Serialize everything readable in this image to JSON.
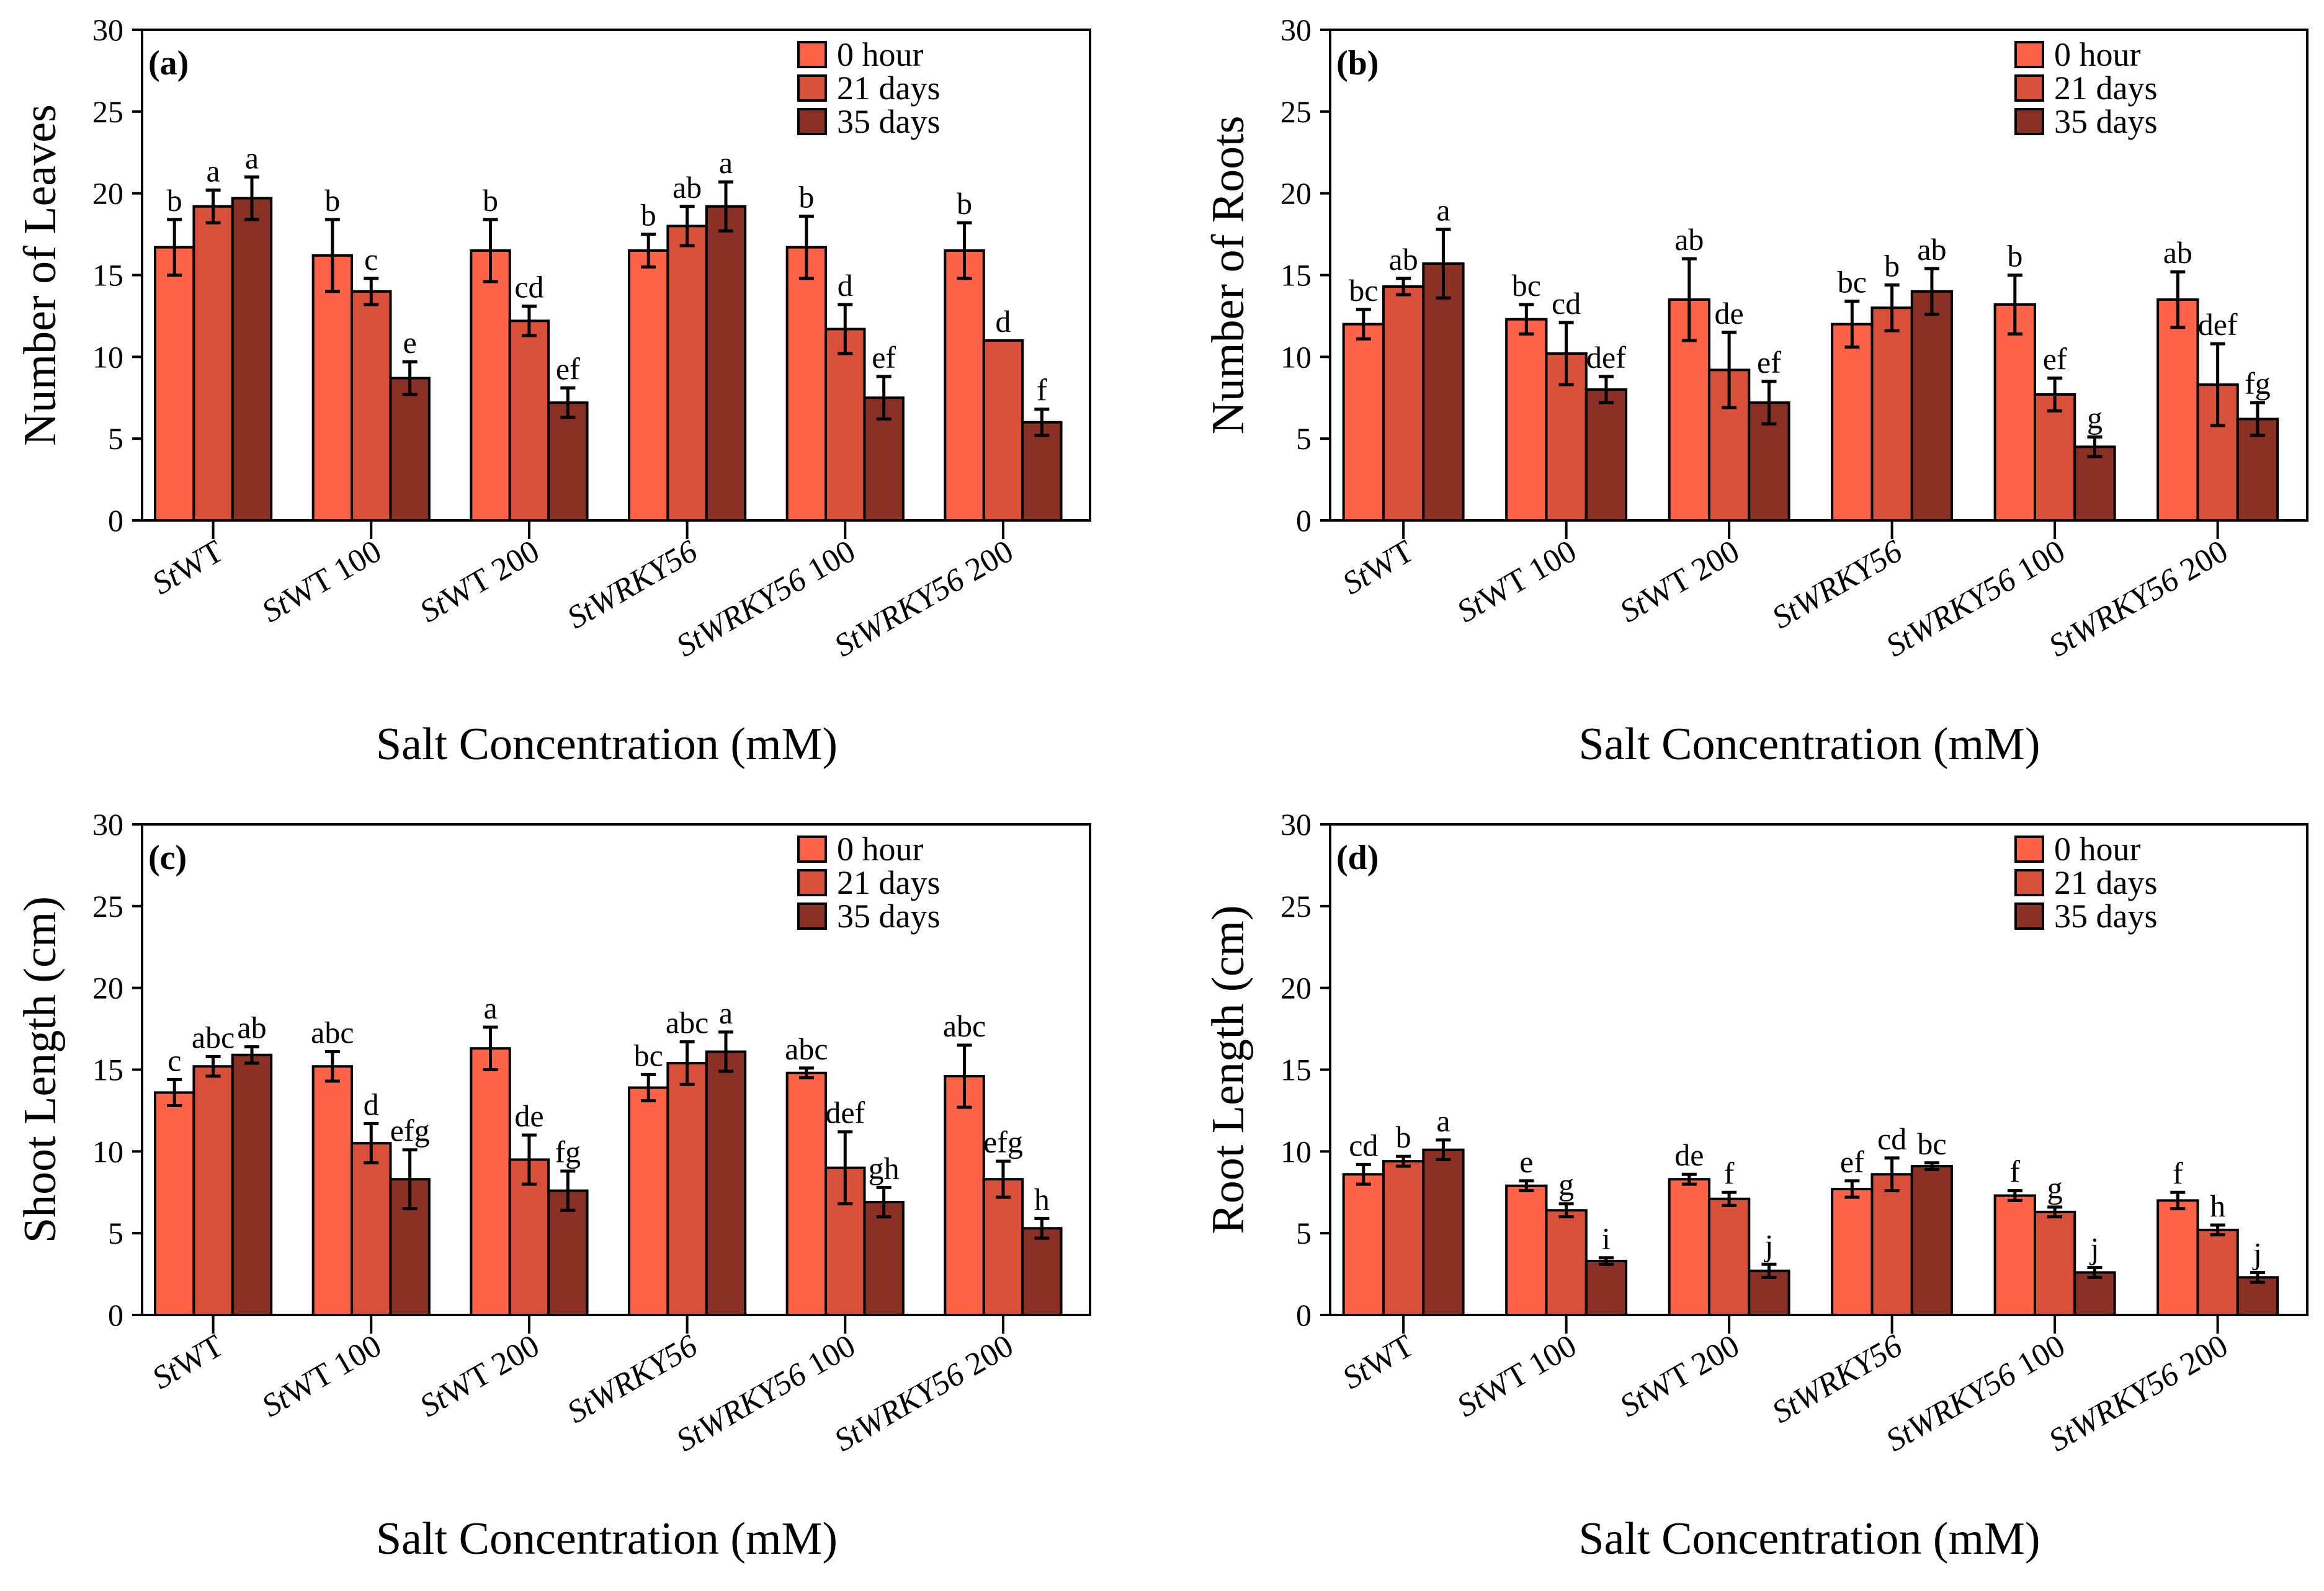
{
  "colors": {
    "0 hour": "#ff6347",
    "21 days": "#d9503a",
    "35 days": "#8b3024"
  },
  "chart_data": [
    {
      "type": "bar",
      "panel": "(a)",
      "ylabel": "Number of Leaves",
      "xlabel": "Salt Concentration (mM)",
      "ylim": [
        0,
        30
      ],
      "yticks": [
        0,
        5,
        10,
        15,
        20,
        25,
        30
      ],
      "legend": "top-right",
      "categories": [
        {
          "text": "StWT",
          "italic": "St"
        },
        {
          "text": "StWT 100",
          "italic": "St"
        },
        {
          "text": "StWT 200",
          "italic": "St"
        },
        {
          "text": "StWRKY56",
          "italic": "StWRKY56"
        },
        {
          "text": "StWRKY56 100",
          "italic": "StWRKY56"
        },
        {
          "text": "StWRKY56 200",
          "italic": "StWRKY56"
        }
      ],
      "series": [
        {
          "name": "0 hour",
          "values": [
            16.7,
            16.2,
            16.5,
            16.5,
            16.7,
            16.5
          ],
          "errors": [
            1.7,
            2.2,
            1.9,
            1.0,
            1.9,
            1.7
          ],
          "letters": [
            "b",
            "b",
            "b",
            "b",
            "b",
            "b"
          ]
        },
        {
          "name": "21 days",
          "values": [
            19.2,
            14.0,
            12.2,
            18.0,
            11.7,
            11.0
          ],
          "errors": [
            1.0,
            0.8,
            0.9,
            1.2,
            1.5,
            0
          ],
          "letters": [
            "a",
            "c",
            "cd",
            "ab",
            "d",
            "d"
          ]
        },
        {
          "name": "35 days",
          "values": [
            19.7,
            8.7,
            7.2,
            19.2,
            7.5,
            6.0
          ],
          "errors": [
            1.3,
            1.0,
            0.9,
            1.5,
            1.3,
            0.8
          ],
          "letters": [
            "a",
            "e",
            "ef",
            "a",
            "ef",
            "f"
          ]
        }
      ]
    },
    {
      "type": "bar",
      "panel": "(b)",
      "ylabel": "Number of Roots",
      "xlabel": "Salt Concentration (mM)",
      "ylim": [
        0,
        30
      ],
      "yticks": [
        0,
        5,
        10,
        15,
        20,
        25,
        30
      ],
      "legend": "top-right",
      "categories": [
        {
          "text": "StWT",
          "italic": "St"
        },
        {
          "text": "StWT 100",
          "italic": "St"
        },
        {
          "text": "StWT 200",
          "italic": "St"
        },
        {
          "text": "StWRKY56",
          "italic": "StWRKY56"
        },
        {
          "text": "StWRKY56 100",
          "italic": "StWRKY56"
        },
        {
          "text": "StWRKY56 200",
          "italic": "StWRKY56"
        }
      ],
      "series": [
        {
          "name": "0 hour",
          "values": [
            12.0,
            12.3,
            13.5,
            12.0,
            13.2,
            13.5
          ],
          "errors": [
            0.9,
            0.9,
            2.5,
            1.4,
            1.8,
            1.7
          ],
          "letters": [
            "bc",
            "bc",
            "ab",
            "bc",
            "b",
            "ab"
          ]
        },
        {
          "name": "21 days",
          "values": [
            14.3,
            10.2,
            9.2,
            13.0,
            7.7,
            8.3
          ],
          "errors": [
            0.5,
            1.9,
            2.3,
            1.4,
            1.0,
            2.5
          ],
          "letters": [
            "ab",
            "cd",
            "de",
            "b",
            "ef",
            "def"
          ]
        },
        {
          "name": "35 days",
          "values": [
            15.7,
            8.0,
            7.2,
            14.0,
            4.5,
            6.2
          ],
          "errors": [
            2.1,
            0.8,
            1.3,
            1.4,
            0.6,
            1.0
          ],
          "letters": [
            "a",
            "def",
            "ef",
            "ab",
            "g",
            "fg"
          ]
        }
      ]
    },
    {
      "type": "bar",
      "panel": "(c)",
      "ylabel": "Shoot Length (cm)",
      "xlabel": "Salt Concentration (mM)",
      "ylim": [
        0,
        30
      ],
      "yticks": [
        0,
        5,
        10,
        15,
        20,
        25,
        30
      ],
      "legend": "top-right",
      "categories": [
        {
          "text": "StWT",
          "italic": "St"
        },
        {
          "text": "StWT 100",
          "italic": "St"
        },
        {
          "text": "StWT 200",
          "italic": "St"
        },
        {
          "text": "StWRKY56",
          "italic": "StWRKY56"
        },
        {
          "text": "StWRKY56 100",
          "italic": "StWRKY56"
        },
        {
          "text": "StWRKY56 200",
          "italic": "StWRKY56"
        }
      ],
      "series": [
        {
          "name": "0 hour",
          "values": [
            13.6,
            15.2,
            16.3,
            13.9,
            14.8,
            14.6
          ],
          "errors": [
            0.8,
            0.9,
            1.3,
            0.8,
            0.3,
            1.9
          ],
          "letters": [
            "c",
            "abc",
            "a",
            "bc",
            "abc",
            "abc"
          ]
        },
        {
          "name": "21 days",
          "values": [
            15.2,
            10.5,
            9.5,
            15.4,
            9.0,
            8.3
          ],
          "errors": [
            0.6,
            1.2,
            1.5,
            1.3,
            2.2,
            1.1
          ],
          "letters": [
            "abc",
            "d",
            "de",
            "abc",
            "def",
            "efg"
          ]
        },
        {
          "name": "35 days",
          "values": [
            15.9,
            8.3,
            7.6,
            16.1,
            6.9,
            5.3
          ],
          "errors": [
            0.5,
            1.8,
            1.2,
            1.2,
            0.9,
            0.6
          ],
          "letters": [
            "ab",
            "efg",
            "fg",
            "a",
            "gh",
            "h"
          ]
        }
      ]
    },
    {
      "type": "bar",
      "panel": "(d)",
      "ylabel": "Root Length (cm)",
      "xlabel": "Salt Concentration (mM)",
      "ylim": [
        0,
        30
      ],
      "yticks": [
        0,
        5,
        10,
        15,
        20,
        25,
        30
      ],
      "legend": "top-right",
      "categories": [
        {
          "text": "StWT",
          "italic": "St"
        },
        {
          "text": "StWT 100",
          "italic": "St"
        },
        {
          "text": "StWT 200",
          "italic": "St"
        },
        {
          "text": "StWRKY56",
          "italic": "StWRKY56"
        },
        {
          "text": "StWRKY56 100",
          "italic": "StWRKY56"
        },
        {
          "text": "StWRKY56 200",
          "italic": "StWRKY56"
        }
      ],
      "series": [
        {
          "name": "0 hour",
          "values": [
            8.6,
            7.9,
            8.3,
            7.7,
            7.3,
            7.0
          ],
          "errors": [
            0.6,
            0.3,
            0.3,
            0.5,
            0.3,
            0.5
          ],
          "letters": [
            "cd",
            "e",
            "de",
            "ef",
            "f",
            "f"
          ]
        },
        {
          "name": "21 days",
          "values": [
            9.4,
            6.4,
            7.1,
            8.6,
            6.3,
            5.2
          ],
          "errors": [
            0.3,
            0.4,
            0.4,
            1.0,
            0.3,
            0.3
          ],
          "letters": [
            "b",
            "g",
            "f",
            "cd",
            "g",
            "h"
          ]
        },
        {
          "name": "35 days",
          "values": [
            10.1,
            3.3,
            2.7,
            9.1,
            2.6,
            2.3
          ],
          "errors": [
            0.6,
            0.2,
            0.4,
            0.2,
            0.3,
            0.3
          ],
          "letters": [
            "a",
            "i",
            "j",
            "bc",
            "j",
            "j"
          ]
        }
      ]
    }
  ]
}
